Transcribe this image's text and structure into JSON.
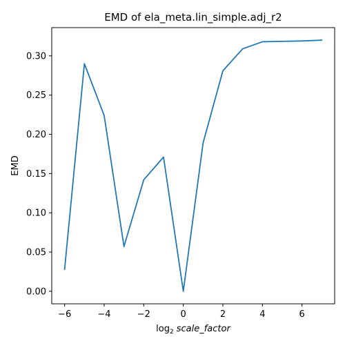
{
  "chart_data": {
    "type": "line",
    "title": "EMD of ela_meta.lin_simple.adj_r2",
    "xlabel": {
      "prefix": "log",
      "subscript": "2",
      "variable": "scale_factor"
    },
    "ylabel": "EMD",
    "xlim": [
      -6.65,
      7.65
    ],
    "ylim": [
      -0.016,
      0.336
    ],
    "x_ticks": [
      -6,
      -4,
      -2,
      0,
      2,
      4,
      6
    ],
    "x_tick_labels": [
      "−6",
      "−4",
      "−2",
      "0",
      "2",
      "4",
      "6"
    ],
    "y_ticks": [
      0.0,
      0.05,
      0.1,
      0.15,
      0.2,
      0.25,
      0.3
    ],
    "y_tick_labels": [
      "0.00",
      "0.05",
      "0.10",
      "0.15",
      "0.20",
      "0.25",
      "0.30"
    ],
    "grid": false,
    "series": [
      {
        "color": "#1f77b4",
        "x": [
          -6,
          -5,
          -4,
          -3,
          -2,
          -1,
          0,
          1,
          2,
          3,
          4,
          5,
          6,
          7
        ],
        "y": [
          0.028,
          0.29,
          0.224,
          0.057,
          0.142,
          0.171,
          0.0,
          0.189,
          0.281,
          0.309,
          0.318,
          0.3185,
          0.319,
          0.32
        ]
      }
    ]
  }
}
